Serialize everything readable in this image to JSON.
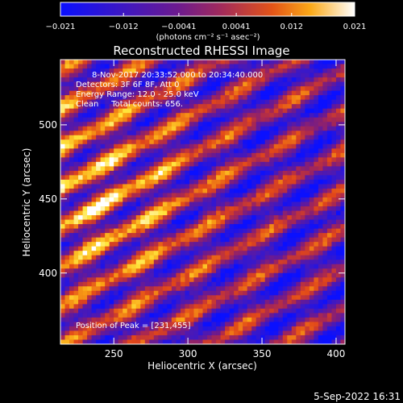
{
  "chart_data": {
    "type": "heatmap",
    "title": "Reconstructed RHESSI Image",
    "xlabel": "Heliocentric X (arcsec)",
    "ylabel": "Heliocentric Y (arcsec)",
    "xlim": [
      214,
      406
    ],
    "ylim": [
      352,
      544
    ],
    "x_ticks": [
      250,
      300,
      350,
      400
    ],
    "y_ticks": [
      400,
      450,
      500
    ],
    "colorbar": {
      "label": "(photons cm⁻² s⁻¹ asec⁻²)",
      "min": -0.021,
      "max": 0.021,
      "tick_labels": [
        "−0.021",
        "−0.012",
        "−0.0041",
        "0.0041",
        "0.012",
        "0.021"
      ],
      "tick_values": [
        -0.021,
        -0.012,
        -0.0041,
        0.0041,
        0.012,
        0.021
      ]
    },
    "annotations": [
      "8-Nov-2017 20:33:52.000 to 20:34:40.000",
      "Detectors: 3F 6F 8F, Att 0",
      "Energy Range: 12.0 - 25.0 keV",
      "Clean     Total counts: 656.",
      "Position of Peak = [231,455]"
    ],
    "peak": [
      231,
      455
    ],
    "grid": false,
    "pattern": "diagonal fringe stripes descending left to right, brightest near the left-center",
    "colors": {
      "background": "#000000",
      "low": "#0000ff",
      "mid": "#8b1a8b",
      "high": "#ffffff"
    }
  },
  "footer": {
    "date": "5-Sep-2022 16:31"
  }
}
